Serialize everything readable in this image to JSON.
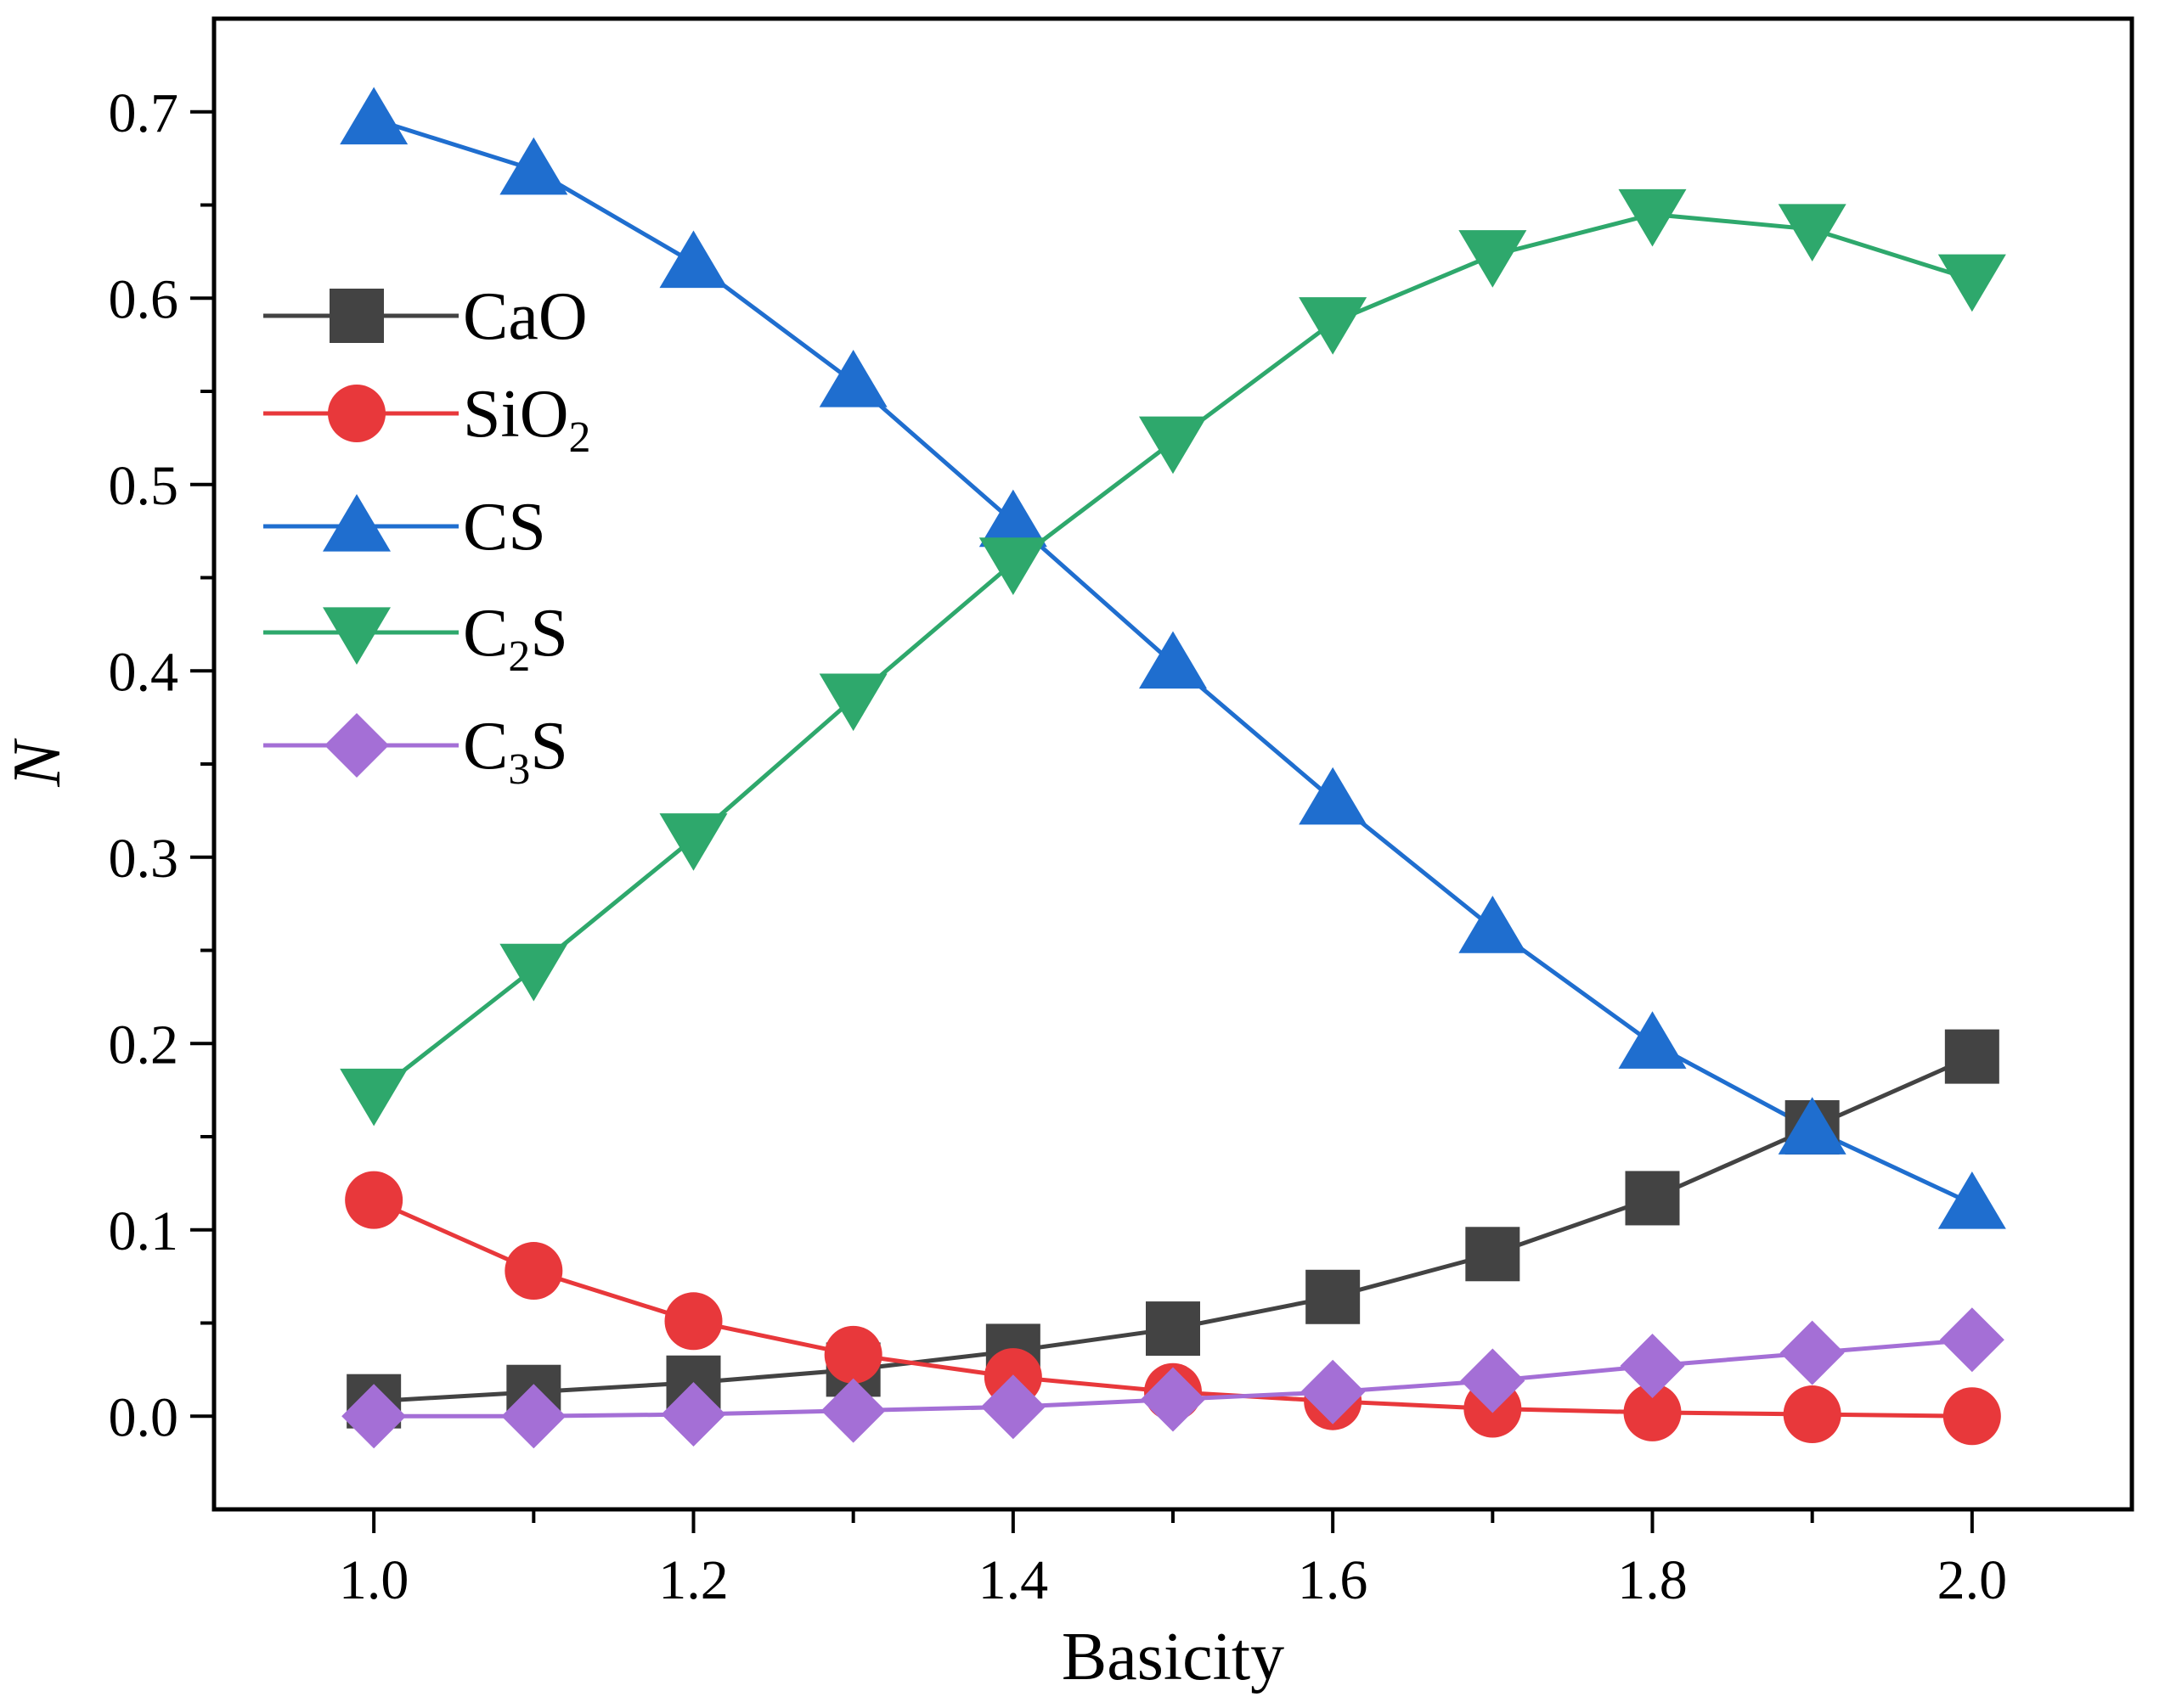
{
  "chart_data": {
    "type": "line",
    "title": "",
    "xlabel": "Basicity",
    "ylabel": "N",
    "xlim": [
      0.9,
      2.1
    ],
    "ylim": [
      -0.05,
      0.75
    ],
    "xticks": [
      "1.0",
      "1.2",
      "1.4",
      "1.6",
      "1.8",
      "2.0"
    ],
    "yticks": [
      "0.0",
      "0.1",
      "0.2",
      "0.3",
      "0.4",
      "0.5",
      "0.6",
      "0.7"
    ],
    "legend_position": "upper-left",
    "x": [
      1.0,
      1.1,
      1.2,
      1.3,
      1.4,
      1.5,
      1.6,
      1.7,
      1.8,
      1.9,
      2.0
    ],
    "series": [
      {
        "name": "CaO",
        "label_main": "CaO",
        "label_sub": "",
        "label_tail": "",
        "marker": "square",
        "color": "#434343",
        "values": [
          0.008,
          0.013,
          0.018,
          0.025,
          0.035,
          0.047,
          0.064,
          0.087,
          0.117,
          0.155,
          0.193
        ]
      },
      {
        "name": "SiO2",
        "label_main": "SiO",
        "label_sub": "2",
        "label_tail": "",
        "marker": "circle",
        "color": "#e8383b",
        "values": [
          0.116,
          0.078,
          0.051,
          0.033,
          0.021,
          0.013,
          0.008,
          0.004,
          0.002,
          0.001,
          0.0
        ]
      },
      {
        "name": "CS",
        "label_main": "CS",
        "label_sub": "",
        "label_tail": "",
        "marker": "triangle-up",
        "color": "#1f6ecf",
        "values": [
          0.696,
          0.669,
          0.619,
          0.555,
          0.48,
          0.404,
          0.331,
          0.262,
          0.2,
          0.154,
          0.114
        ]
      },
      {
        "name": "C2S",
        "label_main": "C",
        "label_sub": "2",
        "label_tail": "S",
        "marker": "triangle-down",
        "color": "#2ea86c",
        "values": [
          0.173,
          0.24,
          0.31,
          0.385,
          0.458,
          0.523,
          0.587,
          0.623,
          0.645,
          0.637,
          0.61
        ]
      },
      {
        "name": "C3S",
        "label_main": "C",
        "label_sub": "3",
        "label_tail": "S",
        "marker": "diamond",
        "color": "#a46fd6",
        "values": [
          0.0,
          0.0,
          0.001,
          0.003,
          0.005,
          0.009,
          0.013,
          0.019,
          0.027,
          0.034,
          0.041
        ]
      }
    ]
  }
}
